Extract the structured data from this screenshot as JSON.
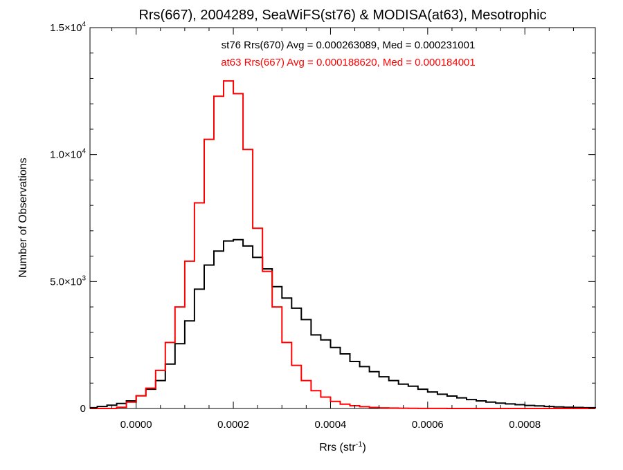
{
  "chart_data": {
    "type": "line",
    "title": "Rrs(667), 2004289, SeaWiFS(st76) & MODISA(at63), Mesotrophic",
    "xlabel_main": "Rrs (str",
    "xlabel_sup": "-1",
    "xlabel_close": ")",
    "ylabel": "Number of Observations",
    "xlim": [
      -9.5e-05,
      0.000945
    ],
    "ylim": [
      0,
      15000
    ],
    "x_ticks": [
      {
        "value": 0.0,
        "label": "0.0000"
      },
      {
        "value": 0.0002,
        "label": "0.0002"
      },
      {
        "value": 0.0004,
        "label": "0.0004"
      },
      {
        "value": 0.0006,
        "label": "0.0006"
      },
      {
        "value": 0.0008,
        "label": "0.0008"
      }
    ],
    "y_ticks": [
      {
        "value": 0,
        "mant": "0",
        "exp": ""
      },
      {
        "value": 5000,
        "mant": "5.0×10",
        "exp": "3"
      },
      {
        "value": 10000,
        "mant": "1.0×10",
        "exp": "4"
      },
      {
        "value": 15000,
        "mant": "1.5×10",
        "exp": "4"
      }
    ],
    "annotations": [
      {
        "text": "st76 Rrs(670) Avg = 0.000263089, Med = 0.000231001",
        "color": "#000000"
      },
      {
        "text": "at63 Rrs(667) Avg = 0.000188620, Med = 0.000184001",
        "color": "#ff0000"
      }
    ],
    "series": [
      {
        "color": "#000000",
        "x": [
          -9.5e-05,
          -8e-05,
          -6e-05,
          -4e-05,
          -2e-05,
          0.0,
          2e-05,
          4e-05,
          6e-05,
          8e-05,
          0.0001,
          0.00012,
          0.00014,
          0.00016,
          0.00018,
          0.0002,
          0.00022,
          0.00024,
          0.00026,
          0.00028,
          0.0003,
          0.00032,
          0.00034,
          0.00036,
          0.00038,
          0.0004,
          0.00042,
          0.00044,
          0.00046,
          0.00048,
          0.0005,
          0.00052,
          0.00054,
          0.00056,
          0.00058,
          0.0006,
          0.00062,
          0.00064,
          0.00066,
          0.00068,
          0.0007,
          0.00072,
          0.00074,
          0.00076,
          0.00078,
          0.0008,
          0.00082,
          0.00084,
          0.00086,
          0.00088,
          0.0009,
          0.00092,
          0.000945
        ],
        "y": [
          30,
          80,
          130,
          200,
          300,
          500,
          760,
          1100,
          1750,
          2550,
          3450,
          4700,
          5650,
          6200,
          6600,
          6650,
          6400,
          5950,
          5500,
          4800,
          4350,
          3950,
          3500,
          2900,
          2700,
          2400,
          2150,
          1850,
          1650,
          1450,
          1250,
          1100,
          960,
          880,
          760,
          650,
          560,
          490,
          420,
          350,
          300,
          250,
          210,
          180,
          150,
          120,
          100,
          80,
          60,
          50,
          40,
          30,
          20
        ]
      },
      {
        "color": "#ff0000",
        "x": [
          -9.5e-05,
          -8e-05,
          -6e-05,
          -4e-05,
          -2e-05,
          0.0,
          2e-05,
          4e-05,
          6e-05,
          8e-05,
          0.0001,
          0.00012,
          0.00014,
          0.00016,
          0.00018,
          0.0002,
          0.00022,
          0.00024,
          0.00026,
          0.00028,
          0.0003,
          0.00032,
          0.00034,
          0.00036,
          0.00038,
          0.0004,
          0.00042,
          0.00044,
          0.00046,
          0.00048,
          0.0005,
          0.00052,
          0.00054,
          0.00056,
          0.00058,
          0.0006,
          0.00062,
          0.00064,
          0.00066,
          0.00068,
          0.0007,
          0.00072,
          0.00074,
          0.00076,
          0.00078,
          0.0008,
          0.00082,
          0.00084,
          0.00086,
          0.00088,
          0.0009,
          0.00092,
          0.000945
        ],
        "y": [
          0,
          0,
          0,
          50,
          250,
          500,
          800,
          1500,
          2600,
          4000,
          5800,
          8100,
          10600,
          12300,
          12900,
          12400,
          10200,
          7100,
          5400,
          4000,
          2600,
          1700,
          1100,
          700,
          450,
          280,
          170,
          110,
          70,
          40,
          25,
          15,
          10,
          6,
          4,
          3,
          2,
          1,
          1,
          0,
          0,
          0,
          0,
          0,
          0,
          0,
          0,
          0,
          0,
          0,
          0,
          0,
          0
        ]
      }
    ]
  }
}
